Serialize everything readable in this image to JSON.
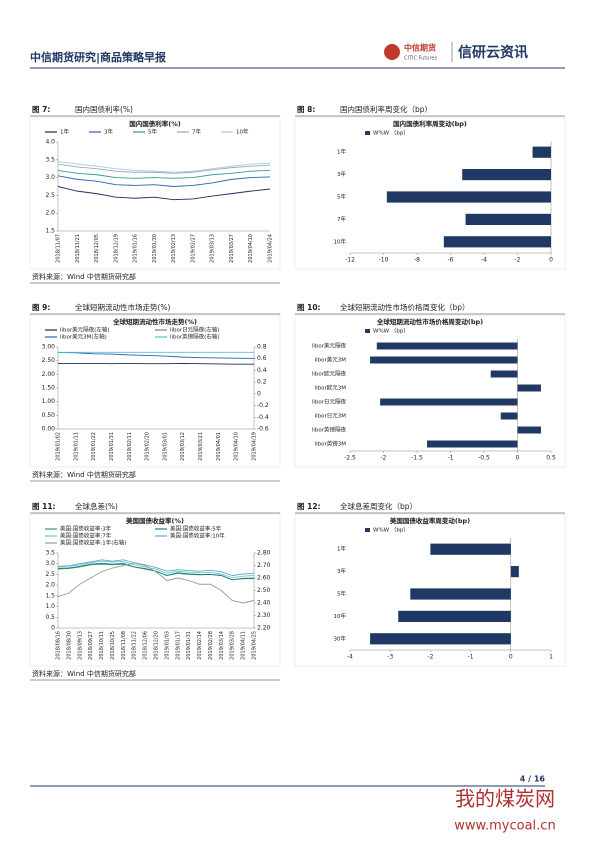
{
  "header": {
    "left": "中信期货研究|商品策略早报",
    "logo_cn": "中信期货",
    "logo_en": "CITIC Futures",
    "brand": "信研云资讯"
  },
  "chart_data": [
    {
      "type": "line",
      "figure": "图 7:",
      "caption": "国内国债利率(%)",
      "title": "国内国债利率(%)",
      "categories": [
        "2018/11/07",
        "2018/11/21",
        "2018/12/05",
        "2018/12/19",
        "2019/01/16",
        "2019/01/30",
        "2019/02/13",
        "2019/02/27",
        "2019/03/13",
        "2019/03/27",
        "2019/04/10",
        "2019/04/24"
      ],
      "series": [
        {
          "name": "1年",
          "color": "#1f2d5a",
          "values": [
            2.75,
            2.62,
            2.55,
            2.45,
            2.42,
            2.45,
            2.38,
            2.4,
            2.48,
            2.55,
            2.62,
            2.68
          ]
        },
        {
          "name": "3年",
          "color": "#2a64b0",
          "values": [
            3.05,
            2.95,
            2.9,
            2.8,
            2.78,
            2.8,
            2.75,
            2.78,
            2.85,
            2.95,
            3.0,
            3.02
          ]
        },
        {
          "name": "5年",
          "color": "#2aa198",
          "values": [
            3.2,
            3.12,
            3.08,
            3.0,
            2.98,
            3.0,
            2.98,
            3.0,
            3.08,
            3.12,
            3.18,
            3.2
          ]
        },
        {
          "name": "7年",
          "color": "#9aa8b8",
          "values": [
            3.38,
            3.3,
            3.25,
            3.18,
            3.15,
            3.15,
            3.12,
            3.15,
            3.22,
            3.28,
            3.32,
            3.35
          ]
        },
        {
          "name": "10年",
          "color": "#a8c8e8",
          "values": [
            3.45,
            3.38,
            3.32,
            3.25,
            3.2,
            3.18,
            3.15,
            3.18,
            3.25,
            3.32,
            3.38,
            3.4
          ]
        }
      ],
      "ylim": [
        1.5,
        4.0
      ],
      "yticks": [
        1.5,
        {
          "value": 2.0,
          "label": "2.0"
        },
        2.5,
        {
          "value": 3.0,
          "label": "3.0"
        },
        3.5,
        {
          "value": 4.0,
          "label": "4.0"
        }
      ]
    },
    {
      "type": "bar",
      "orientation": "horizontal",
      "figure": "图 8:",
      "caption": "国内国债利率周变化（bp）",
      "title": "国内国债利率周变动(bp)",
      "categories": [
        "1年",
        "3年",
        "5年",
        "7年",
        "10年"
      ],
      "series": [
        {
          "name": "W%W （bp）",
          "color": "#1f3864",
          "values": [
            -1.1,
            -5.3,
            -9.8,
            -5.1,
            -6.4
          ]
        }
      ],
      "xlim": [
        -12,
        0
      ],
      "xticks": [
        -12,
        -10,
        -8,
        -6,
        -4,
        -2,
        0
      ]
    },
    {
      "type": "line",
      "figure": "图 9:",
      "caption": "全球短期流动性市场走势(%)",
      "title": "全球短期流动性市场走势(%)",
      "categories": [
        "2019/01/02",
        "2019/01/11",
        "2019/01/22",
        "2019/01/31",
        "2019/02/11",
        "2019/02/20",
        "2019/03/01",
        "2019/03/12",
        "2019/03/21",
        "2019/04/01",
        "2019/04/10",
        "2019/04/19"
      ],
      "series": [
        {
          "name": "libor美元隔夜(左轴)",
          "color": "#1f2d5a",
          "values": [
            2.4,
            2.4,
            2.4,
            2.39,
            2.4,
            2.39,
            2.39,
            2.4,
            2.39,
            2.38,
            2.37,
            2.37
          ]
        },
        {
          "name": "libor日元隔夜(左轴)",
          "color": "#7f7f7f",
          "values": [
            -0.07,
            -0.07,
            -0.08,
            -0.07,
            -0.07,
            -0.08,
            -0.07,
            -0.08,
            -0.07,
            -0.07,
            -0.08,
            -0.07
          ]
        },
        {
          "name": "libor美元3M(左轴)",
          "color": "#2a64b0",
          "values": [
            2.8,
            2.79,
            2.75,
            2.74,
            2.71,
            2.69,
            2.67,
            2.63,
            2.61,
            2.6,
            2.59,
            2.58
          ]
        },
        {
          "name": "libor英镑隔夜(右轴)",
          "color": "#4fc3d8",
          "axis": "y2",
          "values": [
            0.71,
            0.71,
            0.71,
            0.71,
            0.71,
            0.71,
            0.71,
            0.71,
            0.71,
            0.71,
            0.71,
            0.71
          ]
        }
      ],
      "ylim": [
        0,
        3
      ],
      "yticks": [
        {
          "value": 0,
          "label": "0.00"
        },
        {
          "value": 0.5,
          "label": "0.50"
        },
        {
          "value": 1,
          "label": "1.00"
        },
        {
          "value": 1.5,
          "label": "1.50"
        },
        {
          "value": 2,
          "label": "2.00"
        },
        {
          "value": 2.5,
          "label": "2.50"
        },
        {
          "value": 3,
          "label": "3.00"
        }
      ],
      "y2lim": [
        -0.6,
        0.8
      ],
      "y2ticks": [
        -0.6,
        -0.4,
        -0.2,
        0,
        0.2,
        0.4,
        0.6,
        0.8
      ]
    },
    {
      "type": "bar",
      "orientation": "horizontal",
      "figure": "图 10:",
      "caption": "全球短期流动性市场价格周变化（bp）",
      "title": "全球短期流动性市场价格周变动(bp)",
      "categories": [
        "libor美元隔夜",
        "libor美元3M",
        "libor欧元隔夜",
        "libor欧元3M",
        "libor日元隔夜",
        "libor日元3M",
        "libor英镑隔夜",
        "libor英镑3M"
      ],
      "series": [
        {
          "name": "W%W （bp）",
          "color": "#1f3864",
          "values": [
            -2.1,
            -2.2,
            -0.4,
            0.35,
            -2.05,
            -0.25,
            0.35,
            -1.35
          ]
        }
      ],
      "xlim": [
        -2.5,
        0.5
      ],
      "xticks": [
        -2.5,
        -2,
        -1.5,
        -1,
        -0.5,
        0,
        0.5
      ]
    },
    {
      "type": "line",
      "figure": "图 11:",
      "caption": "全球息差(%)",
      "title": "美国国债收益率(%)",
      "categories": [
        "2018/08/16",
        "2018/08/30",
        "2018/09/13",
        "2018/09/27",
        "2018/10/11",
        "2018/10/25",
        "2018/11/08",
        "2018/11/22",
        "2018/12/06",
        "2018/12/20",
        "2019/01/03",
        "2019/01/17",
        "2019/01/31",
        "2019/02/14",
        "2019/02/28",
        "2019/03/14",
        "2019/03/28",
        "2019/04/11",
        "2019/04/25"
      ],
      "series": [
        {
          "name": "美国:国债收益率:3年",
          "color": "#2e9e5b",
          "values": [
            2.75,
            2.78,
            2.85,
            2.95,
            2.98,
            2.95,
            2.98,
            2.85,
            2.78,
            2.65,
            2.45,
            2.55,
            2.5,
            2.48,
            2.5,
            2.45,
            2.25,
            2.3,
            2.3
          ]
        },
        {
          "name": "美国:国债收益率:5年",
          "color": "#1a7f8e",
          "values": [
            2.78,
            2.8,
            2.88,
            2.98,
            3.02,
            2.98,
            3.02,
            2.85,
            2.75,
            2.65,
            2.45,
            2.58,
            2.52,
            2.5,
            2.5,
            2.45,
            2.25,
            2.32,
            2.33
          ]
        },
        {
          "name": "美国:国债收益率:7年",
          "color": "#7ec8c0",
          "values": [
            2.85,
            2.88,
            2.95,
            3.05,
            3.12,
            3.08,
            3.1,
            2.95,
            2.85,
            2.75,
            2.55,
            2.65,
            2.6,
            2.58,
            2.6,
            2.52,
            2.35,
            2.42,
            2.45
          ]
        },
        {
          "name": "美国:国债收益率:10年",
          "color": "#5fa8d8",
          "values": [
            2.88,
            2.9,
            3.0,
            3.08,
            3.18,
            3.12,
            3.18,
            3.05,
            2.95,
            2.82,
            2.65,
            2.72,
            2.68,
            2.65,
            2.7,
            2.62,
            2.45,
            2.52,
            2.55
          ]
        },
        {
          "name": "美国:国债收益率:1年(右轴)",
          "color": "#9a9a9a",
          "axis": "y2",
          "values": [
            2.45,
            2.48,
            2.55,
            2.6,
            2.65,
            2.68,
            2.7,
            2.72,
            2.7,
            2.65,
            2.58,
            2.6,
            2.58,
            2.55,
            2.55,
            2.5,
            2.42,
            2.4,
            2.42
          ]
        }
      ],
      "ylim": [
        0,
        3.5
      ],
      "yticks": [
        0,
        0.5,
        {
          "value": 1,
          "label": "1.0"
        },
        1.5,
        {
          "value": 2,
          "label": "2.0"
        },
        2.5,
        {
          "value": 3,
          "label": "3.0"
        },
        3.5
      ],
      "y2lim": [
        2.2,
        2.8
      ],
      "y2ticks": [
        {
          "value": 2.2,
          "label": "2.20"
        },
        {
          "value": 2.3,
          "label": "2.30"
        },
        {
          "value": 2.4,
          "label": "2.40"
        },
        {
          "value": 2.5,
          "label": "2.50"
        },
        {
          "value": 2.6,
          "label": "2.60"
        },
        {
          "value": 2.7,
          "label": "2.70"
        },
        {
          "value": 2.8,
          "label": "2.80"
        }
      ]
    },
    {
      "type": "bar",
      "orientation": "horizontal",
      "figure": "图 12:",
      "caption": "全球息差周变化（bp）",
      "title": "美国国债收益率周变动(bp)",
      "categories": [
        "1年",
        "3年",
        "5年",
        "10年",
        "30年"
      ],
      "series": [
        {
          "name": "W%W （bp）",
          "color": "#1f3864",
          "values": [
            -2.0,
            0.2,
            -2.5,
            -2.8,
            -3.5
          ]
        }
      ],
      "xlim": [
        -4,
        1
      ],
      "xticks": [
        -4,
        -3,
        -2,
        -1,
        0,
        1
      ]
    }
  ],
  "sources": [
    "资料来源：Wind  中信期货研究部",
    "资料来源：Wind  中信期货研究部",
    "资料来源：Wind  中信期货研究部"
  ],
  "footer": {
    "page": "4 / 16"
  },
  "watermark": {
    "cn": "我的煤炭网",
    "url": "www.mycoal.cn"
  }
}
